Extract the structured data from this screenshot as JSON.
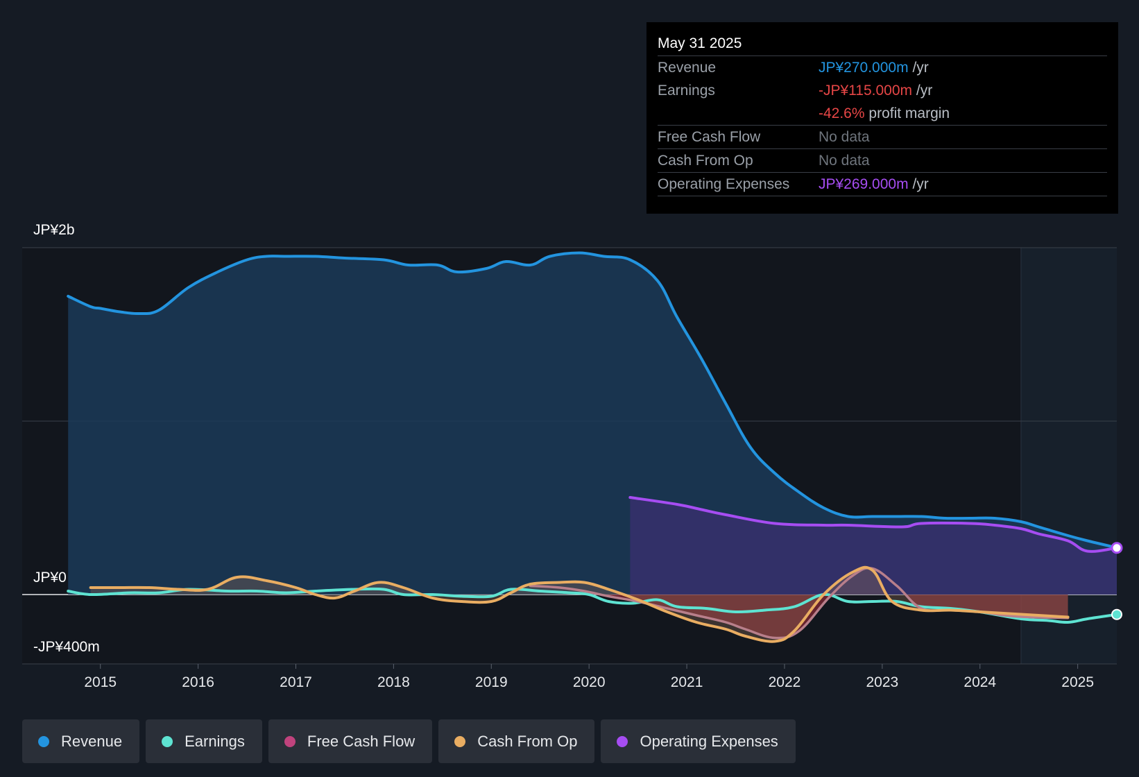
{
  "tooltip": {
    "date": "May 31 2025",
    "revenue_label": "Revenue",
    "revenue_value": "JP¥270.000m",
    "earnings_label": "Earnings",
    "earnings_value": "-JP¥115.000m",
    "margin_value": "-42.6%",
    "margin_text": "profit margin",
    "fcf_label": "Free Cash Flow",
    "fcf_value": "No data",
    "cfo_label": "Cash From Op",
    "cfo_value": "No data",
    "opex_label": "Operating Expenses",
    "opex_value": "JP¥269.000m",
    "per_year": "/yr"
  },
  "legend": [
    {
      "label": "Revenue",
      "color": "#2394df"
    },
    {
      "label": "Earnings",
      "color": "#5ee3d2"
    },
    {
      "label": "Free Cash Flow",
      "color": "#c0437d"
    },
    {
      "label": "Cash From Op",
      "color": "#e9ad62"
    },
    {
      "label": "Operating Expenses",
      "color": "#a64df2"
    }
  ],
  "colors": {
    "revenue": "#2394df",
    "earnings": "#5ee3d2",
    "fcf": "#c0437d",
    "cfo": "#e9ad62",
    "opex": "#a64df2",
    "negative": "#e64646"
  },
  "chart_data": {
    "type": "area",
    "title": "",
    "y_unit": "JPY millions",
    "ylim": [
      -400,
      2000
    ],
    "y_tick_labels": [
      {
        "value": 2000,
        "label": "JP¥2b"
      },
      {
        "value": 0,
        "label": "JP¥0"
      },
      {
        "value": -400,
        "label": "-JP¥400m"
      }
    ],
    "xlim": [
      2014.2,
      2025.4
    ],
    "x_ticks": [
      2015,
      2016,
      2017,
      2018,
      2019,
      2020,
      2021,
      2022,
      2023,
      2024,
      2025
    ],
    "x_tick_labels": [
      "2015",
      "2016",
      "2017",
      "2018",
      "2019",
      "2020",
      "2021",
      "2022",
      "2023",
      "2024",
      "2025"
    ],
    "forecast_start": 2024.42,
    "series": [
      {
        "name": "Revenue",
        "key": "revenue",
        "x": [
          2014.67,
          2014.9,
          2015.0,
          2015.2,
          2015.4,
          2015.6,
          2015.9,
          2016.2,
          2016.5,
          2016.7,
          2016.9,
          2017.2,
          2017.5,
          2017.9,
          2018.15,
          2018.45,
          2018.65,
          2018.95,
          2019.15,
          2019.4,
          2019.6,
          2019.9,
          2020.15,
          2020.42,
          2020.7,
          2020.9,
          2021.15,
          2021.4,
          2021.65,
          2021.9,
          2022.15,
          2022.4,
          2022.65,
          2022.9,
          2023.15,
          2023.4,
          2023.65,
          2023.9,
          2024.15,
          2024.42,
          2024.6,
          2024.9,
          2025.1,
          2025.4
        ],
        "values": [
          1720,
          1660,
          1650,
          1630,
          1620,
          1640,
          1770,
          1860,
          1930,
          1950,
          1950,
          1950,
          1940,
          1930,
          1900,
          1900,
          1860,
          1880,
          1920,
          1900,
          1950,
          1970,
          1950,
          1930,
          1810,
          1600,
          1360,
          1100,
          850,
          700,
          590,
          500,
          450,
          450,
          450,
          450,
          440,
          440,
          440,
          420,
          390,
          340,
          310,
          270
        ]
      },
      {
        "name": "Earnings",
        "key": "earnings",
        "x": [
          2014.67,
          2014.9,
          2015.3,
          2015.6,
          2015.9,
          2016.3,
          2016.6,
          2016.9,
          2017.2,
          2017.6,
          2017.9,
          2018.1,
          2018.4,
          2018.7,
          2019.0,
          2019.2,
          2019.5,
          2019.8,
          2020.0,
          2020.2,
          2020.45,
          2020.7,
          2020.9,
          2021.2,
          2021.5,
          2021.8,
          2022.1,
          2022.4,
          2022.65,
          2022.9,
          2023.15,
          2023.4,
          2023.7,
          2024.0,
          2024.42,
          2024.7,
          2024.9,
          2025.1,
          2025.4
        ],
        "values": [
          20,
          0,
          10,
          10,
          30,
          20,
          20,
          10,
          20,
          30,
          30,
          0,
          0,
          -10,
          -10,
          30,
          20,
          10,
          0,
          -40,
          -50,
          -30,
          -70,
          -80,
          -100,
          -90,
          -70,
          0,
          -40,
          -40,
          -40,
          -70,
          -80,
          -100,
          -140,
          -150,
          -160,
          -140,
          -115
        ]
      },
      {
        "name": "Free Cash Flow",
        "key": "fcf",
        "x": [
          2019.4,
          2019.7,
          2019.95,
          2020.2,
          2020.5,
          2020.8,
          2021.1,
          2021.4,
          2021.6,
          2021.9,
          2022.15,
          2022.45,
          2022.7,
          2022.9,
          2023.15,
          2023.4,
          2023.7,
          2024.0,
          2024.25,
          2024.5,
          2024.9
        ],
        "values": [
          50,
          40,
          20,
          -10,
          -40,
          -80,
          -120,
          -160,
          -200,
          -250,
          -210,
          -20,
          110,
          150,
          50,
          -80,
          -90,
          -100,
          -120,
          -130,
          -135
        ]
      },
      {
        "name": "Cash From Op",
        "key": "cfo",
        "x": [
          2014.9,
          2015.2,
          2015.5,
          2015.8,
          2016.1,
          2016.4,
          2016.7,
          2017.0,
          2017.2,
          2017.4,
          2017.6,
          2017.85,
          2018.1,
          2018.4,
          2018.7,
          2019.0,
          2019.2,
          2019.4,
          2019.7,
          2019.95,
          2020.2,
          2020.5,
          2020.8,
          2021.1,
          2021.4,
          2021.6,
          2021.9,
          2022.1,
          2022.4,
          2022.7,
          2022.9,
          2023.1,
          2023.4,
          2023.7,
          2024.0,
          2024.3,
          2024.6,
          2024.9
        ],
        "values": [
          40,
          40,
          40,
          30,
          30,
          100,
          80,
          40,
          0,
          -20,
          20,
          70,
          40,
          -20,
          -40,
          -40,
          10,
          60,
          70,
          70,
          30,
          -30,
          -100,
          -160,
          -200,
          -240,
          -270,
          -210,
          0,
          130,
          140,
          -40,
          -90,
          -90,
          -100,
          -110,
          -120,
          -130
        ]
      },
      {
        "name": "Operating Expenses",
        "key": "opex",
        "x": [
          2020.42,
          2020.9,
          2021.15,
          2021.4,
          2021.9,
          2022.4,
          2022.65,
          2023.2,
          2023.4,
          2023.9,
          2024.15,
          2024.42,
          2024.6,
          2024.9,
          2025.1,
          2025.4
        ],
        "values": [
          560,
          520,
          490,
          460,
          410,
          400,
          400,
          390,
          410,
          410,
          400,
          380,
          350,
          310,
          250,
          269
        ]
      }
    ]
  }
}
